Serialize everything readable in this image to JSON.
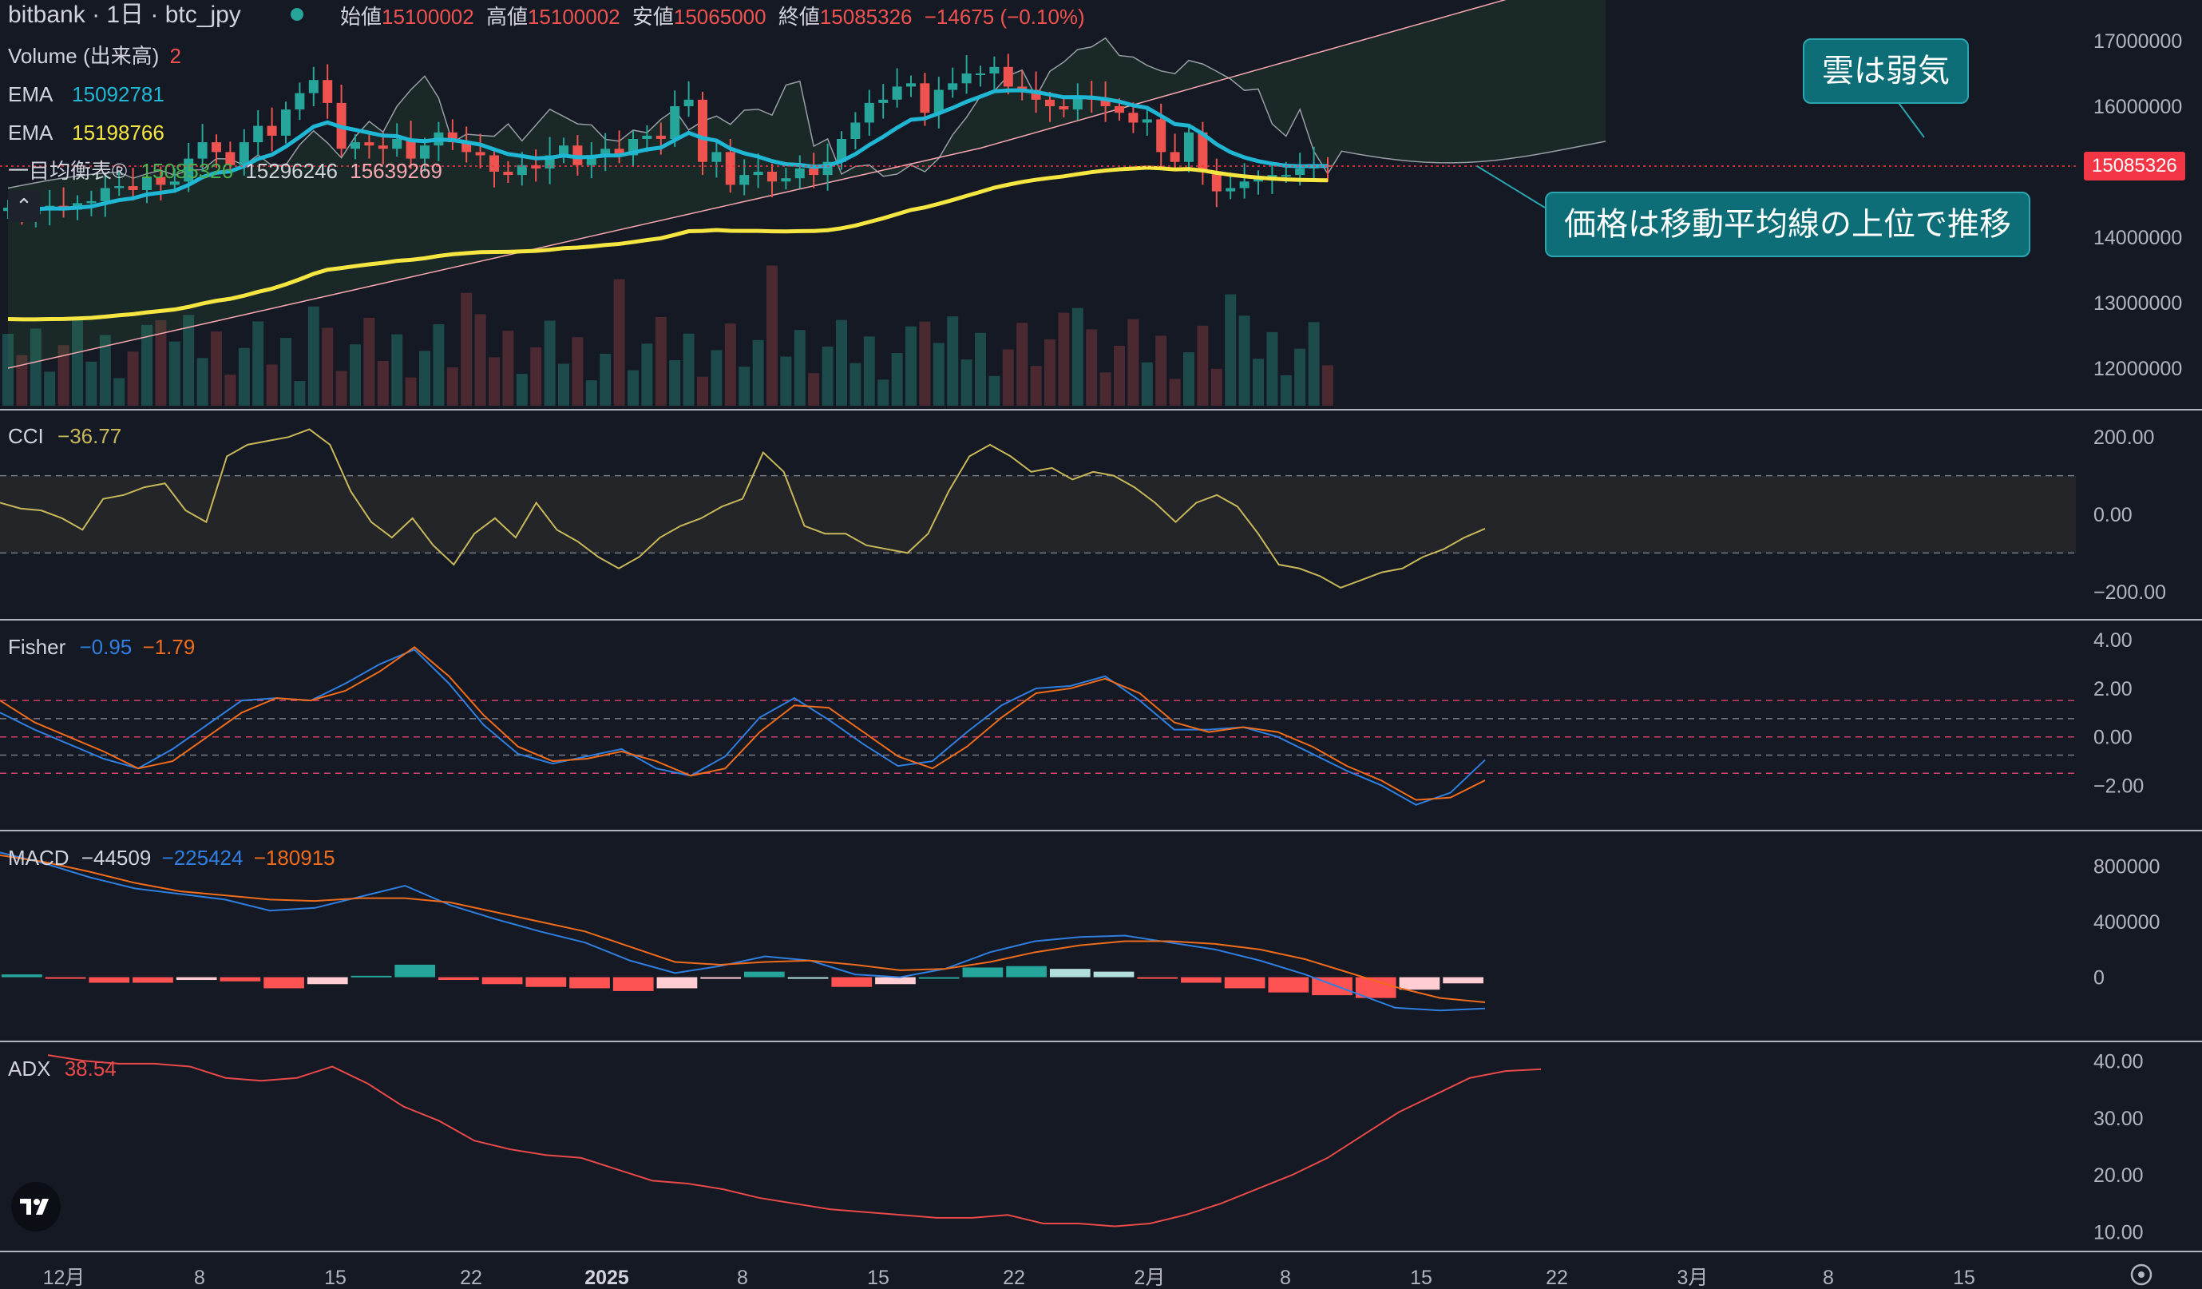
{
  "header": {
    "title": "bitbank · 1日 · btc_jpy",
    "ohlc": [
      {
        "label": "始値",
        "value": "15100002"
      },
      {
        "label": "高値",
        "value": "15100002"
      },
      {
        "label": "安値",
        "value": "15065000"
      },
      {
        "label": "終値",
        "value": "15085326"
      }
    ],
    "change": "−14675 (−0.10%)"
  },
  "legend": {
    "volume_label": "Volume (出来高)",
    "volume_value": "2",
    "ema1_label": "EMA",
    "ema1_value": "15092781",
    "ema2_label": "EMA",
    "ema2_value": "15198766",
    "ichimoku_label": "一目均衡表®",
    "ichimoku_v1": "15085326",
    "ichimoku_v2": "15296246",
    "ichimoku_v3": "15639269",
    "cci_label": "CCI",
    "cci_value": "−36.77",
    "fisher_label": "Fisher",
    "fisher_v1": "−0.95",
    "fisher_v2": "−1.79",
    "macd_label": "MACD",
    "macd_v1": "−44509",
    "macd_v2": "−225424",
    "macd_v3": "−180915",
    "adx_label": "ADX",
    "adx_value": "38.54"
  },
  "callouts": {
    "cloud": "雲は弱気",
    "price": "価格は移動平均線の上位で推移"
  },
  "current_price_tag": "15085326",
  "colors": {
    "background": "#151924",
    "up": "#26a69a",
    "down": "#ef5350",
    "ema_fast": "#1fb7d4",
    "ema_slow": "#f5e642",
    "callout": "#0d6e78",
    "cci": "#c9b85a",
    "fisher_a": "#2f7fe0",
    "fisher_b": "#ef6c1c",
    "macd": "#2f7fe0",
    "signal": "#ef6c1c",
    "adx": "#e84a4a"
  },
  "chart_data": [
    {
      "type": "candlestick",
      "title": "bitbank · 1日 · btc_jpy",
      "ylim": [
        11500000,
        17500000
      ],
      "yticks": [
        "17000000",
        "16000000",
        "15000000",
        "14000000",
        "13000000",
        "12000000"
      ],
      "x_labels": [
        "12月",
        "8",
        "15",
        "22",
        "2025",
        "8",
        "15",
        "22",
        "2月",
        "8",
        "15",
        "22",
        "3月",
        "8",
        "15"
      ],
      "close": [
        14450000,
        14350000,
        14420000,
        14480000,
        14420000,
        14520000,
        14550000,
        14750000,
        14780000,
        14720000,
        14920000,
        14800000,
        14850000,
        15200000,
        15450000,
        15300000,
        15100000,
        15450000,
        15700000,
        15550000,
        15950000,
        16200000,
        16400000,
        16050000,
        15350000,
        15450000,
        15400000,
        15350000,
        15500000,
        15200000,
        15400000,
        15600000,
        15450000,
        15300000,
        15250000,
        15000000,
        14950000,
        15100000,
        15050000,
        15250000,
        15400000,
        15100000,
        15250000,
        15350000,
        15250000,
        15500000,
        15550000,
        15500000,
        16000000,
        16100000,
        15150000,
        15300000,
        14800000,
        14950000,
        15000000,
        14850000,
        14900000,
        15050000,
        14950000,
        15150000,
        15500000,
        15750000,
        16050000,
        16100000,
        16300000,
        16350000,
        15900000,
        16250000,
        16350000,
        16500000,
        16500000,
        16600000,
        16300000,
        16250000,
        16100000,
        16000000,
        15950000,
        16150000,
        16100000,
        16000000,
        15900000,
        15750000,
        15800000,
        15300000,
        15150000,
        15600000,
        15000000,
        14700000,
        14750000,
        14850000,
        14900000,
        14950000,
        14950000,
        15050000,
        15100000,
        15085326
      ],
      "ema_short_last": 15092781,
      "ema_long_last": 15198766,
      "ichimoku_values": [
        15085326,
        15296246,
        15639269
      ],
      "volume_last": 2
    },
    {
      "type": "line",
      "name": "CCI",
      "ylim": [
        -250,
        250
      ],
      "yticks": [
        "200.00",
        "0.00",
        "−200.00"
      ],
      "band": [
        -100,
        100
      ],
      "values": [
        30,
        15,
        10,
        -10,
        -40,
        40,
        50,
        70,
        80,
        10,
        -20,
        150,
        180,
        190,
        200,
        220,
        180,
        60,
        -20,
        -60,
        -10,
        -80,
        -130,
        -50,
        -10,
        -60,
        30,
        -40,
        -70,
        -110,
        -140,
        -110,
        -60,
        -30,
        -10,
        20,
        40,
        160,
        110,
        -30,
        -50,
        -50,
        -80,
        -90,
        -100,
        -50,
        60,
        150,
        180,
        150,
        110,
        120,
        90,
        110,
        100,
        70,
        30,
        -20,
        30,
        50,
        20,
        -50,
        -130,
        -140,
        -160,
        -190,
        -170,
        -150,
        -140,
        -110,
        -90,
        -60,
        -37
      ]
    },
    {
      "type": "line",
      "name": "Fisher",
      "ylim": [
        -3.5,
        4.5
      ],
      "yticks": [
        "4.00",
        "2.00",
        "0.00",
        "−2.00"
      ],
      "series": [
        {
          "name": "Fisher",
          "values": [
            1.0,
            0.3,
            -0.3,
            -0.9,
            -1.3,
            -0.5,
            0.5,
            1.5,
            1.6,
            1.5,
            2.2,
            3.0,
            3.6,
            2.2,
            0.5,
            -0.7,
            -1.1,
            -0.8,
            -0.5,
            -1.3,
            -1.6,
            -0.8,
            0.8,
            1.6,
            0.7,
            -0.3,
            -1.2,
            -1.0,
            0.2,
            1.3,
            2.0,
            2.1,
            2.5,
            1.5,
            0.3,
            0.3,
            0.4,
            0.0,
            -0.7,
            -1.4,
            -2.0,
            -2.8,
            -2.3,
            -0.95
          ]
        },
        {
          "name": "Trigger",
          "values": [
            1.5,
            0.6,
            0.0,
            -0.6,
            -1.3,
            -1.0,
            0.0,
            1.0,
            1.6,
            1.5,
            1.9,
            2.7,
            3.7,
            2.5,
            0.9,
            -0.4,
            -1.0,
            -0.9,
            -0.6,
            -1.0,
            -1.6,
            -1.3,
            0.2,
            1.3,
            1.2,
            0.2,
            -0.8,
            -1.3,
            -0.4,
            0.8,
            1.8,
            2.0,
            2.4,
            1.8,
            0.6,
            0.2,
            0.4,
            0.2,
            -0.4,
            -1.2,
            -1.8,
            -2.6,
            -2.5,
            -1.79
          ]
        }
      ]
    },
    {
      "type": "line",
      "name": "MACD",
      "ylim": [
        -400000,
        1000000
      ],
      "yticks": [
        "800000",
        "400000",
        "0"
      ],
      "series": [
        {
          "name": "MACD",
          "values": [
            900000,
            820000,
            720000,
            640000,
            600000,
            560000,
            480000,
            500000,
            580000,
            660000,
            520000,
            420000,
            330000,
            250000,
            120000,
            30000,
            80000,
            150000,
            120000,
            20000,
            0,
            60000,
            180000,
            260000,
            290000,
            300000,
            250000,
            200000,
            120000,
            20000,
            -100000,
            -220000,
            -240000,
            -225424
          ]
        },
        {
          "name": "Signal",
          "values": [
            880000,
            830000,
            760000,
            680000,
            620000,
            590000,
            560000,
            550000,
            570000,
            570000,
            540000,
            470000,
            400000,
            330000,
            220000,
            110000,
            90000,
            110000,
            120000,
            90000,
            50000,
            60000,
            110000,
            180000,
            230000,
            260000,
            260000,
            240000,
            200000,
            130000,
            30000,
            -70000,
            -150000,
            -180915
          ]
        },
        {
          "name": "Histogram",
          "values": [
            20000,
            -10000,
            -40000,
            -40000,
            -20000,
            -30000,
            -80000,
            -50000,
            10000,
            90000,
            -20000,
            -50000,
            -70000,
            -80000,
            -100000,
            -80000,
            -10000,
            40000,
            0,
            -70000,
            -50000,
            0,
            70000,
            80000,
            60000,
            40000,
            -10000,
            -40000,
            -80000,
            -110000,
            -130000,
            -150000,
            -90000,
            -44509
          ]
        }
      ]
    },
    {
      "type": "line",
      "name": "ADX",
      "ylim": [
        8,
        42
      ],
      "yticks": [
        "40.00",
        "30.00",
        "20.00",
        "10.00"
      ],
      "values": [
        41,
        40,
        39.5,
        39.5,
        39,
        37,
        36.5,
        37,
        39,
        36,
        32,
        29.5,
        26,
        24.5,
        23.5,
        23,
        21,
        19,
        18.5,
        17.5,
        16,
        15,
        14,
        13.5,
        13,
        12.5,
        12.5,
        13,
        11.5,
        11.5,
        11,
        11.5,
        13,
        15,
        17.5,
        20,
        23,
        27,
        31,
        34,
        37,
        38.2,
        38.54
      ]
    }
  ]
}
